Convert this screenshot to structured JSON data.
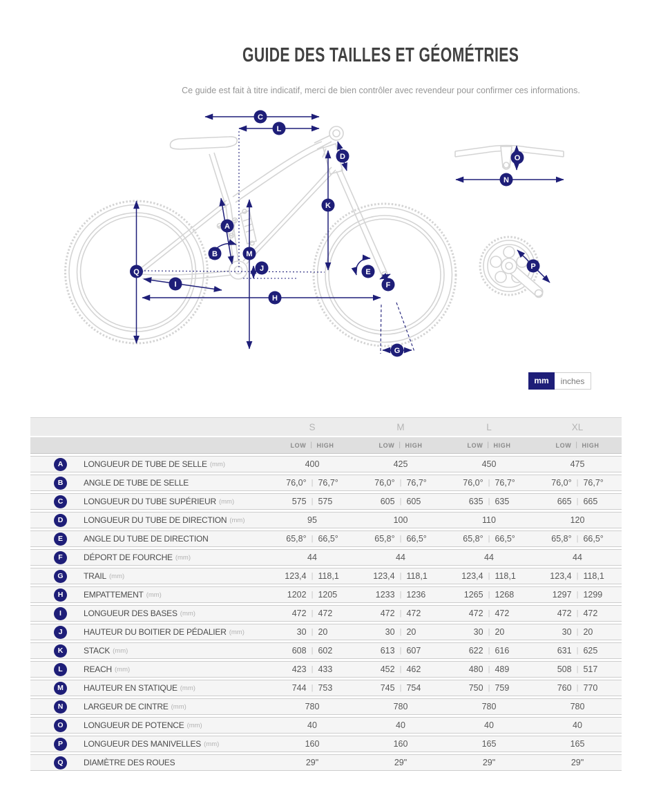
{
  "header": {
    "title": "GUIDE DES TAILLES ET GÉOMÉTRIES",
    "subtitle": "Ce guide est fait à titre indicatif, merci de bien contrôler avec revendeur pour confirmer ces informations."
  },
  "toggle": {
    "mm_label": "mm",
    "inches_label": "inches",
    "active": "mm"
  },
  "colors": {
    "accent_navy": "#1e1e78",
    "bike_line_gray": "#d4d4d4"
  },
  "diagram": {
    "badges": [
      "A",
      "B",
      "C",
      "D",
      "E",
      "F",
      "G",
      "H",
      "I",
      "J",
      "K",
      "L",
      "M",
      "N",
      "O",
      "P",
      "Q"
    ]
  },
  "table": {
    "sizes": [
      "S",
      "M",
      "L",
      "XL"
    ],
    "low_label": "LOW",
    "high_label": "HIGH",
    "sep": "|",
    "rows": [
      {
        "letter": "A",
        "label": "LONGUEUR DE TUBE DE SELLE",
        "unit": "(mm)",
        "values": [
          [
            "400"
          ],
          [
            "425"
          ],
          [
            "450"
          ],
          [
            "475"
          ]
        ]
      },
      {
        "letter": "B",
        "label": "ANGLE DE TUBE DE SELLE",
        "unit": "",
        "values": [
          [
            "76,0°",
            "76,7°"
          ],
          [
            "76,0°",
            "76,7°"
          ],
          [
            "76,0°",
            "76,7°"
          ],
          [
            "76,0°",
            "76,7°"
          ]
        ]
      },
      {
        "letter": "C",
        "label": "LONGUEUR DU TUBE SUPÉRIEUR",
        "unit": "(mm)",
        "values": [
          [
            "575",
            "575"
          ],
          [
            "605",
            "605"
          ],
          [
            "635",
            "635"
          ],
          [
            "665",
            "665"
          ]
        ]
      },
      {
        "letter": "D",
        "label": "LONGUEUR DU TUBE DE DIRECTION",
        "unit": "(mm)",
        "values": [
          [
            "95"
          ],
          [
            "100"
          ],
          [
            "110"
          ],
          [
            "120"
          ]
        ]
      },
      {
        "letter": "E",
        "label": "ANGLE DU TUBE DE DIRECTION",
        "unit": "",
        "values": [
          [
            "65,8°",
            "66,5°"
          ],
          [
            "65,8°",
            "66,5°"
          ],
          [
            "65,8°",
            "66,5°"
          ],
          [
            "65,8°",
            "66,5°"
          ]
        ]
      },
      {
        "letter": "F",
        "label": "DÉPORT DE FOURCHE",
        "unit": "(mm)",
        "values": [
          [
            "44"
          ],
          [
            "44"
          ],
          [
            "44"
          ],
          [
            "44"
          ]
        ]
      },
      {
        "letter": "G",
        "label": "TRAIL",
        "unit": "(mm)",
        "values": [
          [
            "123,4",
            "118,1"
          ],
          [
            "123,4",
            "118,1"
          ],
          [
            "123,4",
            "118,1"
          ],
          [
            "123,4",
            "118,1"
          ]
        ]
      },
      {
        "letter": "H",
        "label": "EMPATTEMENT",
        "unit": "(mm)",
        "values": [
          [
            "1202",
            "1205"
          ],
          [
            "1233",
            "1236"
          ],
          [
            "1265",
            "1268"
          ],
          [
            "1297",
            "1299"
          ]
        ]
      },
      {
        "letter": "I",
        "label": "LONGUEUR DES BASES",
        "unit": "(mm)",
        "values": [
          [
            "472",
            "472"
          ],
          [
            "472",
            "472"
          ],
          [
            "472",
            "472"
          ],
          [
            "472",
            "472"
          ]
        ]
      },
      {
        "letter": "J",
        "label": "HAUTEUR DU BOITIER DE PÉDALIER",
        "unit": "(mm)",
        "values": [
          [
            "30",
            "20"
          ],
          [
            "30",
            "20"
          ],
          [
            "30",
            "20"
          ],
          [
            "30",
            "20"
          ]
        ]
      },
      {
        "letter": "K",
        "label": "STACK",
        "unit": "(mm)",
        "values": [
          [
            "608",
            "602"
          ],
          [
            "613",
            "607"
          ],
          [
            "622",
            "616"
          ],
          [
            "631",
            "625"
          ]
        ]
      },
      {
        "letter": "L",
        "label": "REACH",
        "unit": "(mm)",
        "values": [
          [
            "423",
            "433"
          ],
          [
            "452",
            "462"
          ],
          [
            "480",
            "489"
          ],
          [
            "508",
            "517"
          ]
        ]
      },
      {
        "letter": "M",
        "label": "HAUTEUR EN STATIQUE",
        "unit": "(mm)",
        "values": [
          [
            "744",
            "753"
          ],
          [
            "745",
            "754"
          ],
          [
            "750",
            "759"
          ],
          [
            "760",
            "770"
          ]
        ]
      },
      {
        "letter": "N",
        "label": "LARGEUR DE CINTRE",
        "unit": "(mm)",
        "values": [
          [
            "780"
          ],
          [
            "780"
          ],
          [
            "780"
          ],
          [
            "780"
          ]
        ]
      },
      {
        "letter": "O",
        "label": "LONGUEUR DE POTENCE",
        "unit": "(mm)",
        "values": [
          [
            "40"
          ],
          [
            "40"
          ],
          [
            "40"
          ],
          [
            "40"
          ]
        ]
      },
      {
        "letter": "P",
        "label": "LONGUEUR DES MANIVELLES",
        "unit": "(mm)",
        "values": [
          [
            "160"
          ],
          [
            "160"
          ],
          [
            "165"
          ],
          [
            "165"
          ]
        ]
      },
      {
        "letter": "Q",
        "label": "DIAMÈTRE DES ROUES",
        "unit": "",
        "values": [
          [
            "29\""
          ],
          [
            "29\""
          ],
          [
            "29\""
          ],
          [
            "29\""
          ]
        ]
      }
    ]
  }
}
